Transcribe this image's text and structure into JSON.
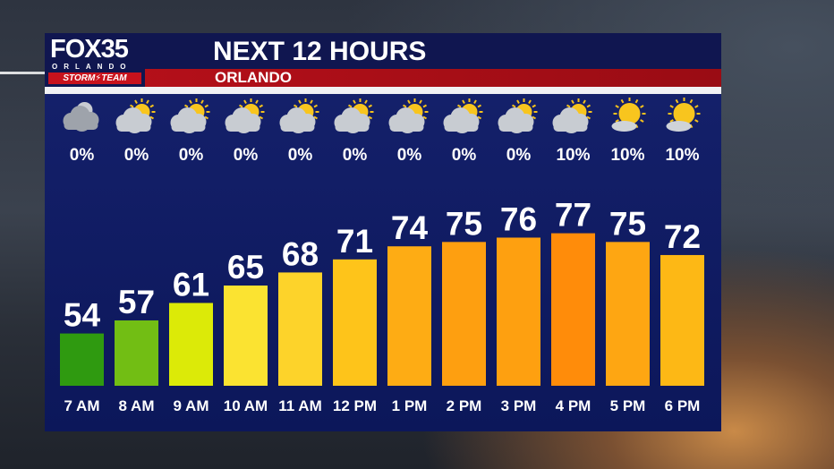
{
  "header": {
    "logo_main": "FOX35",
    "logo_city": "ORLANDO",
    "logo_team": "STORM⚡TEAM",
    "title": "NEXT 12 HOURS",
    "subtitle": "ORLANDO"
  },
  "colors": {
    "panel": "#0f1a60",
    "title_bar": "#101650",
    "sub_bar": "#b8101a"
  },
  "chart_data": {
    "type": "bar",
    "categories": [
      "7 AM",
      "8 AM",
      "9 AM",
      "10 AM",
      "11 AM",
      "12 PM",
      "1 PM",
      "2 PM",
      "3 PM",
      "4 PM",
      "5 PM",
      "6 PM"
    ],
    "values": [
      54,
      57,
      61,
      65,
      68,
      71,
      74,
      75,
      76,
      77,
      75,
      72
    ],
    "precip_chance": [
      "0%",
      "0%",
      "0%",
      "0%",
      "0%",
      "0%",
      "0%",
      "0%",
      "0%",
      "10%",
      "10%",
      "10%"
    ],
    "icons": [
      "cloudy-moon-icon",
      "partly-cloudy-icon",
      "partly-cloudy-icon",
      "partly-cloudy-icon",
      "partly-cloudy-icon",
      "partly-cloudy-icon",
      "partly-cloudy-icon",
      "partly-cloudy-icon",
      "partly-cloudy-icon",
      "partly-cloudy-icon",
      "mostly-sunny-icon",
      "mostly-sunny-icon"
    ],
    "bar_colors": [
      "#2f9a10",
      "#72be14",
      "#dcea08",
      "#fbe331",
      "#fdd32a",
      "#fec41a",
      "#feac14",
      "#fe9f10",
      "#fea010",
      "#ff8c0a",
      "#fea612",
      "#fdb815"
    ],
    "title": "",
    "xlabel": "",
    "ylabel": ""
  }
}
